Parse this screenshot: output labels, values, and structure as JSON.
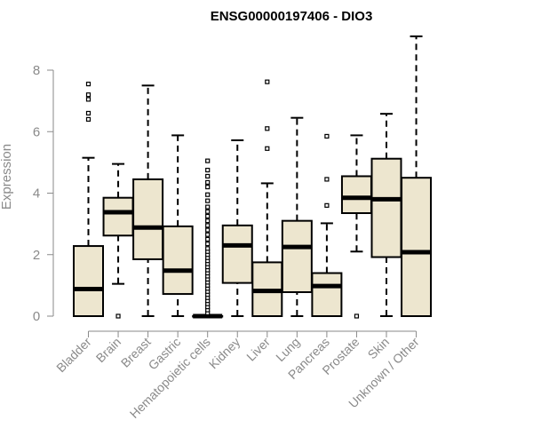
{
  "chart_data": {
    "type": "boxplot",
    "title": "ENSG00000197406 - DIO3",
    "xlabel": "",
    "ylabel": "Expression",
    "ylim": [
      0,
      9.2
    ],
    "yticks": [
      0,
      2,
      4,
      6,
      8
    ],
    "grid": false,
    "legend": "none",
    "box_fill": "#ede6cf",
    "categories": [
      "Bladder",
      "Brain",
      "Breast",
      "Gastric",
      "Hematopoietic cells",
      "Kidney",
      "Liver",
      "Lung",
      "Pancreas",
      "Prostate",
      "Skin",
      "Unknown / Other"
    ],
    "boxes": [
      {
        "min": 0,
        "q1": 0,
        "median": 0.88,
        "q3": 2.28,
        "max": 5.15,
        "outliers": [
          6.4,
          6.6,
          7.05,
          7.2,
          7.55
        ]
      },
      {
        "min": 1.05,
        "q1": 2.62,
        "median": 3.38,
        "q3": 3.85,
        "max": 4.95,
        "outliers": [
          0
        ]
      },
      {
        "min": 0,
        "q1": 1.85,
        "median": 2.88,
        "q3": 4.45,
        "max": 7.5,
        "outliers": []
      },
      {
        "min": 0,
        "q1": 0.72,
        "median": 1.48,
        "q3": 2.92,
        "max": 5.88,
        "outliers": []
      },
      {
        "min": 0,
        "q1": 0,
        "median": 0,
        "q3": 0,
        "max": 0,
        "outliers": [
          0.1,
          0.2,
          0.3,
          0.4,
          0.5,
          0.6,
          0.7,
          0.8,
          0.9,
          1.0,
          1.1,
          1.2,
          1.3,
          1.4,
          1.5,
          1.6,
          1.7,
          1.8,
          1.9,
          2.0,
          2.1,
          2.2,
          2.35,
          2.5,
          2.65,
          2.8,
          2.95,
          3.1,
          3.25,
          3.4,
          3.55,
          3.75,
          3.95,
          4.2,
          4.35,
          4.55,
          4.75,
          5.05
        ]
      },
      {
        "min": 0,
        "q1": 1.08,
        "median": 2.3,
        "q3": 2.95,
        "max": 5.72,
        "outliers": []
      },
      {
        "min": 0,
        "q1": 0,
        "median": 0.82,
        "q3": 1.75,
        "max": 4.32,
        "outliers": [
          5.45,
          6.1,
          7.62
        ]
      },
      {
        "min": 0,
        "q1": 0.78,
        "median": 2.25,
        "q3": 3.1,
        "max": 6.45,
        "outliers": []
      },
      {
        "min": 0,
        "q1": 0,
        "median": 0.98,
        "q3": 1.4,
        "max": 3.02,
        "outliers": [
          3.6,
          4.45,
          5.85
        ]
      },
      {
        "min": 2.1,
        "q1": 3.35,
        "median": 3.85,
        "q3": 4.55,
        "max": 5.88,
        "outliers": [
          0
        ]
      },
      {
        "min": 0,
        "q1": 1.92,
        "median": 3.8,
        "q3": 5.12,
        "max": 6.58,
        "outliers": []
      },
      {
        "min": 0,
        "q1": 0,
        "median": 2.08,
        "q3": 4.5,
        "max": 9.1,
        "outliers": []
      }
    ]
  }
}
